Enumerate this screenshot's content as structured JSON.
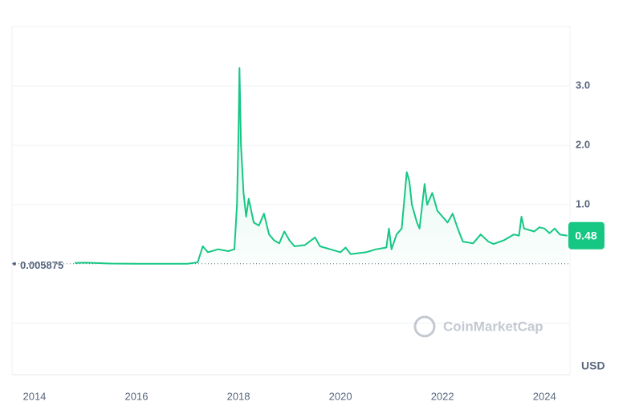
{
  "chart_data": {
    "type": "line",
    "x": [
      2014.79,
      2015.0,
      2015.5,
      2016.0,
      2016.5,
      2017.0,
      2017.2,
      2017.3,
      2017.4,
      2017.6,
      2017.8,
      2017.92,
      2017.97,
      2018.0,
      2018.02,
      2018.05,
      2018.1,
      2018.15,
      2018.2,
      2018.3,
      2018.4,
      2018.5,
      2018.6,
      2018.7,
      2018.8,
      2018.9,
      2019.0,
      2019.1,
      2019.3,
      2019.5,
      2019.6,
      2019.8,
      2020.0,
      2020.1,
      2020.2,
      2020.5,
      2020.7,
      2020.9,
      2020.95,
      2021.0,
      2021.1,
      2021.2,
      2021.3,
      2021.35,
      2021.4,
      2021.5,
      2021.55,
      2021.65,
      2021.7,
      2021.8,
      2021.9,
      2022.0,
      2022.1,
      2022.2,
      2022.3,
      2022.4,
      2022.6,
      2022.75,
      2022.9,
      2023.0,
      2023.2,
      2023.4,
      2023.5,
      2023.55,
      2023.6,
      2023.8,
      2023.9,
      2024.0,
      2024.1,
      2024.2,
      2024.3,
      2024.45
    ],
    "series": [
      {
        "color": "#16c784",
        "values": [
          0.02,
          0.025,
          0.01,
          0.006,
          0.006,
          0.007,
          0.03,
          0.3,
          0.2,
          0.25,
          0.22,
          0.25,
          1.0,
          2.2,
          3.3,
          2.0,
          1.2,
          0.8,
          1.1,
          0.7,
          0.65,
          0.85,
          0.5,
          0.4,
          0.35,
          0.55,
          0.4,
          0.3,
          0.32,
          0.45,
          0.3,
          0.25,
          0.2,
          0.28,
          0.17,
          0.2,
          0.25,
          0.28,
          0.6,
          0.25,
          0.5,
          0.6,
          1.55,
          1.4,
          1.0,
          0.7,
          0.6,
          1.35,
          1.0,
          1.2,
          0.9,
          0.8,
          0.7,
          0.85,
          0.6,
          0.38,
          0.35,
          0.5,
          0.38,
          0.34,
          0.4,
          0.5,
          0.48,
          0.8,
          0.6,
          0.55,
          0.62,
          0.6,
          0.52,
          0.6,
          0.5,
          0.48
        ]
      }
    ],
    "xlim": [
      2013.56,
      2024.5
    ],
    "xticks": [
      2014,
      2016,
      2018,
      2020,
      2022,
      2024
    ],
    "ylim": [
      -1.86,
      4.0
    ],
    "yticks": [
      {
        "value": 1,
        "label": "1.0"
      },
      {
        "value": 2,
        "label": "2.0"
      },
      {
        "value": 3,
        "label": "3.0"
      }
    ],
    "baseline": 0.005875,
    "current_price": 0.48,
    "currency": "USD",
    "watermark": "CoinMarketCap",
    "grid": true
  }
}
